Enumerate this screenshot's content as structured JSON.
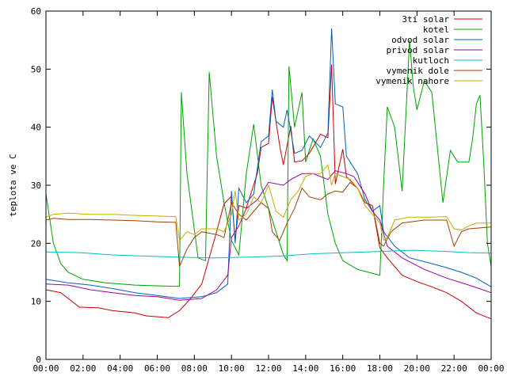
{
  "chart_data": {
    "type": "line",
    "title": "",
    "xlabel": "",
    "ylabel": "teplota ve C",
    "ylim": [
      0,
      60
    ],
    "xlim_hours": [
      0,
      24
    ],
    "yticks": [
      0,
      10,
      20,
      30,
      40,
      50,
      60
    ],
    "xticks": [
      "00:00",
      "02:00",
      "04:00",
      "06:00",
      "08:00",
      "10:00",
      "12:00",
      "14:00",
      "16:00",
      "18:00",
      "20:00",
      "22:00",
      "00:00"
    ],
    "grid": false,
    "legend_position": "top-right",
    "series": [
      {
        "name": "3ti solar",
        "color": "#cc0000",
        "points": [
          [
            "00:00",
            12.0
          ],
          [
            "00:48",
            11.5
          ],
          [
            "01:48",
            9.0
          ],
          [
            "02:48",
            8.9
          ],
          [
            "03:36",
            8.4
          ],
          [
            "04:48",
            8.0
          ],
          [
            "05:24",
            7.5
          ],
          [
            "06:36",
            7.2
          ],
          [
            "07:12",
            8.4
          ],
          [
            "07:48",
            10.5
          ],
          [
            "08:24",
            13.0
          ],
          [
            "09:12",
            22.0
          ],
          [
            "09:36",
            26.8
          ],
          [
            "10:00",
            28.1
          ],
          [
            "10:12",
            20.5
          ],
          [
            "10:24",
            26.5
          ],
          [
            "10:48",
            26.1
          ],
          [
            "11:24",
            32.1
          ],
          [
            "11:36",
            36.5
          ],
          [
            "12:00",
            37.2
          ],
          [
            "12:12",
            45.2
          ],
          [
            "12:36",
            36.8
          ],
          [
            "12:48",
            33.5
          ],
          [
            "13:12",
            40.2
          ],
          [
            "13:24",
            34.0
          ],
          [
            "13:48",
            34.2
          ],
          [
            "14:12",
            35.5
          ],
          [
            "14:48",
            38.8
          ],
          [
            "15:12",
            38.2
          ],
          [
            "15:24",
            50.8
          ],
          [
            "15:36",
            30.2
          ],
          [
            "16:00",
            36.2
          ],
          [
            "16:12",
            31.5
          ],
          [
            "16:48",
            29.5
          ],
          [
            "17:12",
            27.0
          ],
          [
            "17:36",
            26.5
          ],
          [
            "18:00",
            19.2
          ],
          [
            "18:24",
            17.5
          ],
          [
            "19:12",
            14.5
          ],
          [
            "20:00",
            13.4
          ],
          [
            "20:48",
            12.5
          ],
          [
            "21:36",
            11.5
          ],
          [
            "22:24",
            10.0
          ],
          [
            "23:12",
            8.0
          ],
          [
            "24:00",
            7.0
          ]
        ]
      },
      {
        "name": "kotel",
        "color": "#00a000",
        "points": [
          [
            "00:00",
            28.5
          ],
          [
            "00:24",
            20.0
          ],
          [
            "00:48",
            16.5
          ],
          [
            "01:12",
            15.0
          ],
          [
            "02:00",
            13.8
          ],
          [
            "03:12",
            13.2
          ],
          [
            "04:48",
            12.8
          ],
          [
            "06:48",
            12.6
          ],
          [
            "07:12",
            12.6
          ],
          [
            "07:18",
            46.0
          ],
          [
            "07:36",
            32.0
          ],
          [
            "08:12",
            17.5
          ],
          [
            "08:36",
            17.0
          ],
          [
            "08:48",
            49.5
          ],
          [
            "09:12",
            35.0
          ],
          [
            "09:36",
            27.0
          ],
          [
            "10:00",
            20.5
          ],
          [
            "10:24",
            18.0
          ],
          [
            "10:48",
            32.0
          ],
          [
            "11:12",
            40.5
          ],
          [
            "11:36",
            30.0
          ],
          [
            "12:00",
            26.0
          ],
          [
            "12:36",
            20.0
          ],
          [
            "12:48",
            18.0
          ],
          [
            "13:00",
            17.0
          ],
          [
            "13:06",
            50.5
          ],
          [
            "13:24",
            40.0
          ],
          [
            "13:36",
            43.0
          ],
          [
            "13:48",
            46.0
          ],
          [
            "14:00",
            34.0
          ],
          [
            "14:24",
            38.0
          ],
          [
            "14:48",
            35.0
          ],
          [
            "15:12",
            25.0
          ],
          [
            "15:36",
            20.0
          ],
          [
            "16:00",
            17.0
          ],
          [
            "16:48",
            15.5
          ],
          [
            "17:24",
            15.0
          ],
          [
            "18:00",
            14.5
          ],
          [
            "18:12",
            30.0
          ],
          [
            "18:24",
            43.5
          ],
          [
            "18:48",
            40.0
          ],
          [
            "19:12",
            29.0
          ],
          [
            "19:36",
            55.0
          ],
          [
            "19:48",
            47.0
          ],
          [
            "20:00",
            43.0
          ],
          [
            "20:24",
            48.0
          ],
          [
            "20:48",
            46.0
          ],
          [
            "21:24",
            27.0
          ],
          [
            "21:48",
            36.0
          ],
          [
            "22:12",
            34.0
          ],
          [
            "22:48",
            34.0
          ],
          [
            "23:00",
            38.0
          ],
          [
            "23:12",
            44.0
          ],
          [
            "23:24",
            45.5
          ],
          [
            "23:36",
            34.0
          ],
          [
            "23:48",
            20.0
          ],
          [
            "24:00",
            16.0
          ]
        ]
      },
      {
        "name": "odvod solar",
        "color": "#0060c0",
        "points": [
          [
            "00:00",
            13.8
          ],
          [
            "01:12",
            13.2
          ],
          [
            "02:24",
            12.8
          ],
          [
            "03:36",
            12.2
          ],
          [
            "04:48",
            11.5
          ],
          [
            "06:00",
            11.0
          ],
          [
            "07:12",
            10.5
          ],
          [
            "08:24",
            10.8
          ],
          [
            "09:12",
            11.5
          ],
          [
            "09:48",
            13.0
          ],
          [
            "10:00",
            29.0
          ],
          [
            "10:12",
            20.0
          ],
          [
            "10:24",
            29.5
          ],
          [
            "10:48",
            27.0
          ],
          [
            "11:12",
            28.5
          ],
          [
            "11:36",
            37.5
          ],
          [
            "12:00",
            38.5
          ],
          [
            "12:12",
            46.5
          ],
          [
            "12:24",
            41.0
          ],
          [
            "12:48",
            40.0
          ],
          [
            "13:00",
            43.0
          ],
          [
            "13:24",
            35.5
          ],
          [
            "13:48",
            36.0
          ],
          [
            "14:12",
            38.5
          ],
          [
            "14:48",
            36.5
          ],
          [
            "15:12",
            39.0
          ],
          [
            "15:24",
            57.0
          ],
          [
            "15:36",
            44.0
          ],
          [
            "16:00",
            43.5
          ],
          [
            "16:12",
            35.0
          ],
          [
            "16:48",
            32.0
          ],
          [
            "17:12",
            27.5
          ],
          [
            "17:36",
            25.5
          ],
          [
            "18:00",
            26.5
          ],
          [
            "18:12",
            22.0
          ],
          [
            "18:48",
            19.5
          ],
          [
            "19:36",
            17.5
          ],
          [
            "20:48",
            16.5
          ],
          [
            "21:36",
            15.8
          ],
          [
            "22:24",
            15.0
          ],
          [
            "23:12",
            14.0
          ],
          [
            "24:00",
            12.5
          ]
        ]
      },
      {
        "name": "privod solar",
        "color": "#a000a0",
        "points": [
          [
            "00:00",
            13.0
          ],
          [
            "01:12",
            12.8
          ],
          [
            "02:24",
            12.0
          ],
          [
            "03:36",
            11.5
          ],
          [
            "04:48",
            11.0
          ],
          [
            "06:00",
            10.8
          ],
          [
            "07:12",
            10.2
          ],
          [
            "08:24",
            10.5
          ],
          [
            "09:12",
            12.0
          ],
          [
            "09:48",
            14.5
          ],
          [
            "10:00",
            21.0
          ],
          [
            "10:24",
            23.0
          ],
          [
            "10:48",
            26.0
          ],
          [
            "11:24",
            27.5
          ],
          [
            "12:00",
            30.5
          ],
          [
            "12:48",
            30.0
          ],
          [
            "13:12",
            31.0
          ],
          [
            "13:48",
            32.0
          ],
          [
            "14:24",
            32.0
          ],
          [
            "15:12",
            31.0
          ],
          [
            "15:36",
            32.5
          ],
          [
            "16:12",
            32.0
          ],
          [
            "16:36",
            31.5
          ],
          [
            "17:12",
            28.5
          ],
          [
            "17:36",
            25.5
          ],
          [
            "18:00",
            24.0
          ],
          [
            "18:24",
            19.5
          ],
          [
            "19:12",
            17.5
          ],
          [
            "20:24",
            15.5
          ],
          [
            "21:36",
            14.0
          ],
          [
            "22:48",
            12.8
          ],
          [
            "24:00",
            11.5
          ]
        ]
      },
      {
        "name": "kutloch",
        "color": "#00c0c0",
        "points": [
          [
            "00:00",
            18.5
          ],
          [
            "01:48",
            18.4
          ],
          [
            "03:36",
            18.0
          ],
          [
            "05:24",
            17.8
          ],
          [
            "07:12",
            17.6
          ],
          [
            "09:00",
            17.5
          ],
          [
            "10:48",
            17.6
          ],
          [
            "12:36",
            17.8
          ],
          [
            "14:24",
            18.2
          ],
          [
            "16:12",
            18.4
          ],
          [
            "18:00",
            18.6
          ],
          [
            "19:48",
            18.8
          ],
          [
            "21:36",
            18.6
          ],
          [
            "22:48",
            18.4
          ],
          [
            "24:00",
            18.3
          ]
        ]
      },
      {
        "name": "vymenik dole",
        "color": "#a04000",
        "points": [
          [
            "00:00",
            24.0
          ],
          [
            "00:24",
            24.3
          ],
          [
            "01:12",
            24.1
          ],
          [
            "02:24",
            24.1
          ],
          [
            "03:36",
            24.0
          ],
          [
            "04:48",
            23.9
          ],
          [
            "06:00",
            23.7
          ],
          [
            "07:00",
            23.6
          ],
          [
            "07:12",
            16.0
          ],
          [
            "07:36",
            19.0
          ],
          [
            "08:00",
            21.0
          ],
          [
            "08:24",
            22.0
          ],
          [
            "09:12",
            21.5
          ],
          [
            "09:36",
            21.0
          ],
          [
            "10:00",
            27.0
          ],
          [
            "10:24",
            25.0
          ],
          [
            "10:48",
            24.0
          ],
          [
            "11:12",
            25.5
          ],
          [
            "11:36",
            27.0
          ],
          [
            "12:00",
            26.0
          ],
          [
            "12:12",
            22.0
          ],
          [
            "12:36",
            20.5
          ],
          [
            "13:00",
            23.5
          ],
          [
            "13:24",
            26.0
          ],
          [
            "13:48",
            29.5
          ],
          [
            "14:12",
            28.0
          ],
          [
            "14:48",
            27.5
          ],
          [
            "15:12",
            28.5
          ],
          [
            "15:36",
            29.0
          ],
          [
            "16:00",
            28.8
          ],
          [
            "16:24",
            30.5
          ],
          [
            "16:48",
            29.5
          ],
          [
            "17:12",
            27.0
          ],
          [
            "17:36",
            26.5
          ],
          [
            "18:00",
            20.0
          ],
          [
            "18:12",
            19.5
          ],
          [
            "18:36",
            22.0
          ],
          [
            "19:12",
            23.5
          ],
          [
            "20:24",
            24.0
          ],
          [
            "21:36",
            24.0
          ],
          [
            "22:00",
            19.5
          ],
          [
            "22:24",
            22.0
          ],
          [
            "22:48",
            22.5
          ],
          [
            "24:00",
            22.8
          ]
        ]
      },
      {
        "name": "vymenik nahore",
        "color": "#c0b000",
        "points": [
          [
            "00:00",
            24.5
          ],
          [
            "00:24",
            25.0
          ],
          [
            "01:12",
            25.2
          ],
          [
            "02:24",
            25.0
          ],
          [
            "03:36",
            25.0
          ],
          [
            "04:48",
            24.8
          ],
          [
            "06:00",
            24.7
          ],
          [
            "07:00",
            24.6
          ],
          [
            "07:12",
            20.5
          ],
          [
            "07:36",
            22.0
          ],
          [
            "08:00",
            21.5
          ],
          [
            "08:24",
            22.5
          ],
          [
            "09:12",
            22.5
          ],
          [
            "09:36",
            22.0
          ],
          [
            "10:00",
            25.0
          ],
          [
            "10:12",
            29.0
          ],
          [
            "10:24",
            24.0
          ],
          [
            "10:48",
            25.0
          ],
          [
            "11:12",
            28.0
          ],
          [
            "11:36",
            27.0
          ],
          [
            "12:00",
            30.0
          ],
          [
            "12:24",
            25.5
          ],
          [
            "12:48",
            24.5
          ],
          [
            "13:12",
            27.5
          ],
          [
            "13:36",
            29.0
          ],
          [
            "14:00",
            31.5
          ],
          [
            "14:24",
            32.0
          ],
          [
            "14:48",
            32.0
          ],
          [
            "15:12",
            33.5
          ],
          [
            "15:24",
            30.0
          ],
          [
            "15:36",
            32.0
          ],
          [
            "16:00",
            31.5
          ],
          [
            "16:24",
            31.0
          ],
          [
            "16:48",
            29.5
          ],
          [
            "17:12",
            26.5
          ],
          [
            "17:36",
            25.0
          ],
          [
            "18:00",
            23.5
          ],
          [
            "18:12",
            20.5
          ],
          [
            "18:24",
            21.0
          ],
          [
            "18:48",
            24.0
          ],
          [
            "19:36",
            24.5
          ],
          [
            "20:48",
            24.5
          ],
          [
            "21:36",
            24.6
          ],
          [
            "22:00",
            22.5
          ],
          [
            "22:24",
            22.3
          ],
          [
            "22:48",
            23.0
          ],
          [
            "23:12",
            23.5
          ],
          [
            "24:00",
            23.5
          ]
        ]
      }
    ]
  }
}
